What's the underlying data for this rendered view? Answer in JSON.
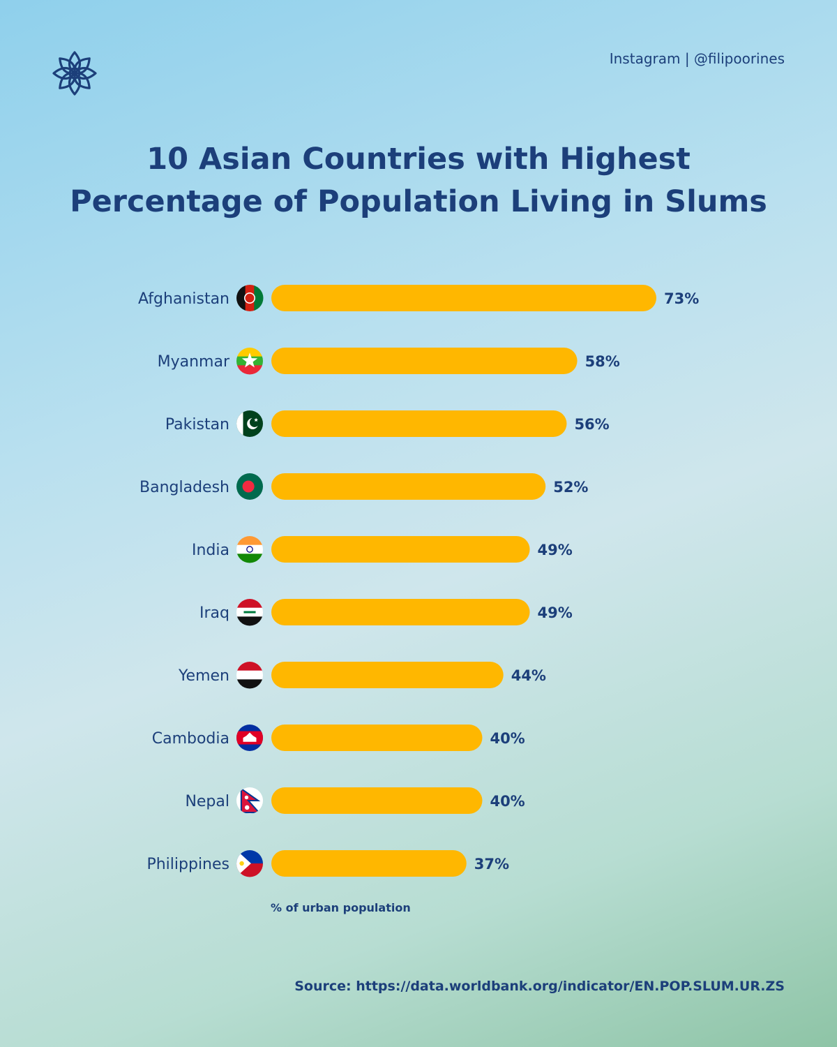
{
  "header": {
    "credit": "Instagram | @filipoorines"
  },
  "colors": {
    "bar": "#ffb700",
    "text": "#1c3f7a"
  },
  "chart_data": {
    "type": "bar",
    "orientation": "horizontal",
    "title_lines": [
      "10 Asian Countries with Highest",
      "Percentage of Population Living in Slums"
    ],
    "categories": [
      "Afghanistan",
      "Myanmar",
      "Pakistan",
      "Bangladesh",
      "India",
      "Iraq",
      "Yemen",
      "Cambodia",
      "Nepal",
      "Philippines"
    ],
    "values": [
      73,
      58,
      56,
      52,
      49,
      49,
      44,
      40,
      40,
      37
    ],
    "value_labels": [
      "73%",
      "58%",
      "56%",
      "52%",
      "49%",
      "49%",
      "44%",
      "40%",
      "40%",
      "37%"
    ],
    "flags": [
      "afghanistan-flag-icon",
      "myanmar-flag-icon",
      "pakistan-flag-icon",
      "bangladesh-flag-icon",
      "india-flag-icon",
      "iraq-flag-icon",
      "yemen-flag-icon",
      "cambodia-flag-icon",
      "nepal-flag-icon",
      "philippines-flag-icon"
    ],
    "unit_note": "% of urban population",
    "grid": false,
    "legend": "none"
  },
  "footer": {
    "source": "Source: https://data.worldbank.org/indicator/EN.POP.SLUM.UR.ZS"
  }
}
